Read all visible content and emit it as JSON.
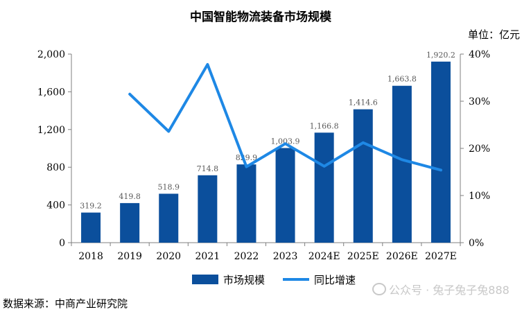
{
  "chart_data": {
    "type": "bar",
    "title": "中国智能物流装备市场规模",
    "unit": "单位：亿元",
    "categories": [
      "2018",
      "2019",
      "2020",
      "2021",
      "2022",
      "2023",
      "2024E",
      "2025E",
      "2026E",
      "2027E"
    ],
    "series": [
      {
        "name": "市场规模",
        "type": "bar",
        "axis": "left",
        "color": "#0b4f9c",
        "values": [
          319.2,
          419.8,
          518.9,
          714.8,
          829.9,
          1003.9,
          1166.8,
          1414.6,
          1663.8,
          1920.2
        ],
        "labels": [
          "319.2",
          "419.8",
          "518.9",
          "714.8",
          "829.9",
          "1,003.9",
          "1,166.8",
          "1,414.6",
          "1,663.8",
          "1,920.2"
        ]
      },
      {
        "name": "同比增速",
        "type": "line",
        "axis": "right",
        "color": "#1e88e5",
        "values": [
          null,
          31.5,
          23.6,
          37.8,
          16.1,
          21.0,
          16.2,
          21.2,
          17.6,
          15.4
        ]
      }
    ],
    "y_left": {
      "min": 0,
      "max": 2000,
      "ticks": [
        0,
        400,
        800,
        1200,
        1600,
        2000
      ],
      "tick_labels": [
        "0",
        "400",
        "800",
        "1,200",
        "1,600",
        "2,000"
      ]
    },
    "y_right": {
      "min": 0,
      "max": 40,
      "ticks": [
        0,
        10,
        20,
        30,
        40
      ],
      "tick_labels": [
        "0%",
        "10%",
        "20%",
        "30%",
        "40%"
      ]
    },
    "grid": false,
    "legend_position": "bottom"
  },
  "source": "数据来源：中商产业研究院",
  "watermark": "公众号 · 兔子兔子兔888"
}
